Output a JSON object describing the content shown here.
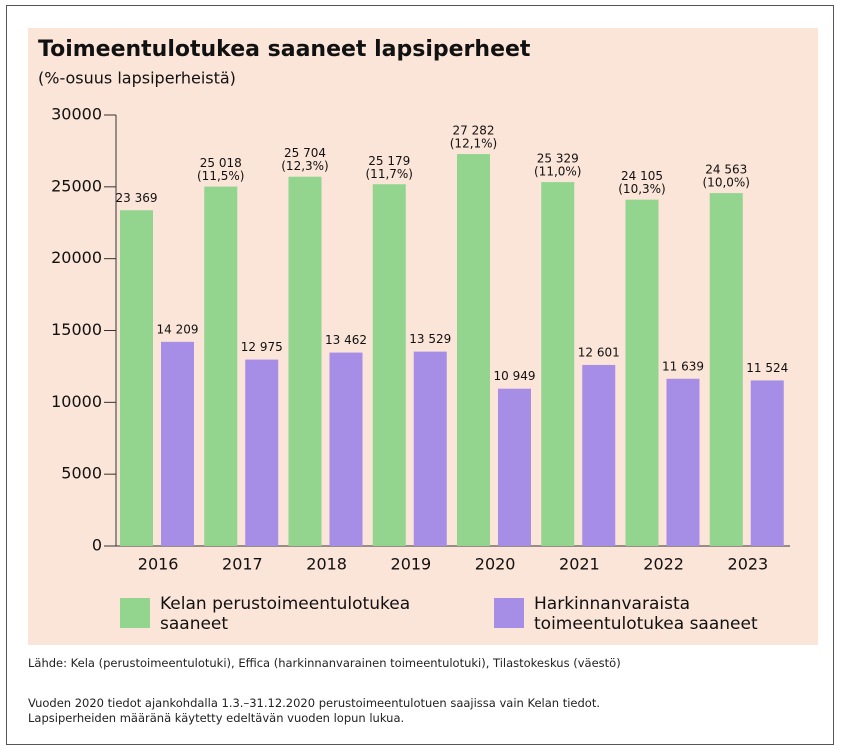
{
  "chart_data": {
    "type": "bar",
    "title": "Toimeentulotukea saaneet lapsiperheet",
    "subtitle": "(%-osuus lapsiperheistä)",
    "categories": [
      "2016",
      "2017",
      "2018",
      "2019",
      "2020",
      "2021",
      "2022",
      "2023"
    ],
    "series": [
      {
        "name": "Kelan perustoimeentulotukea saaneet",
        "color": "#93d48f",
        "values": [
          23369,
          25018,
          25704,
          25179,
          27282,
          25329,
          24105,
          24563
        ],
        "value_labels": [
          "23 369",
          "25 018",
          "25 704",
          "25 179",
          "27 282",
          "25 329",
          "24 105",
          "24 563"
        ],
        "share_labels": [
          null,
          "(11,5%)",
          "(12,3%)",
          "(11,7%)",
          "(12,1%)",
          "(11,0%)",
          "(10,3%)",
          "(10,0%)"
        ]
      },
      {
        "name": "Harkinnanvaraista toimeentulotukea saaneet",
        "color": "#a68de6",
        "values": [
          14209,
          12975,
          13462,
          13529,
          10949,
          12601,
          11639,
          11524
        ],
        "value_labels": [
          "14 209",
          "12 975",
          "13 462",
          "13 529",
          "10 949",
          "12 601",
          "11 639",
          "11 524"
        ]
      }
    ],
    "ylim": [
      0,
      30000
    ],
    "yticks": [
      0,
      5000,
      10000,
      15000,
      20000,
      25000,
      30000
    ],
    "source": "Lähde: Kela (perustoimeentulotuki), Effica (harkinnanvarainen toimeentulotuki), Tilastokeskus (väestö)",
    "notes": [
      "Vuoden 2020 tiedot ajankohdalla 1.3.–31.12.2020 perustoimeentulotuen saajissa vain Kelan tiedot.",
      "Lapsiperheiden määränä käytetty edeltävän vuoden lopun lukua."
    ]
  }
}
